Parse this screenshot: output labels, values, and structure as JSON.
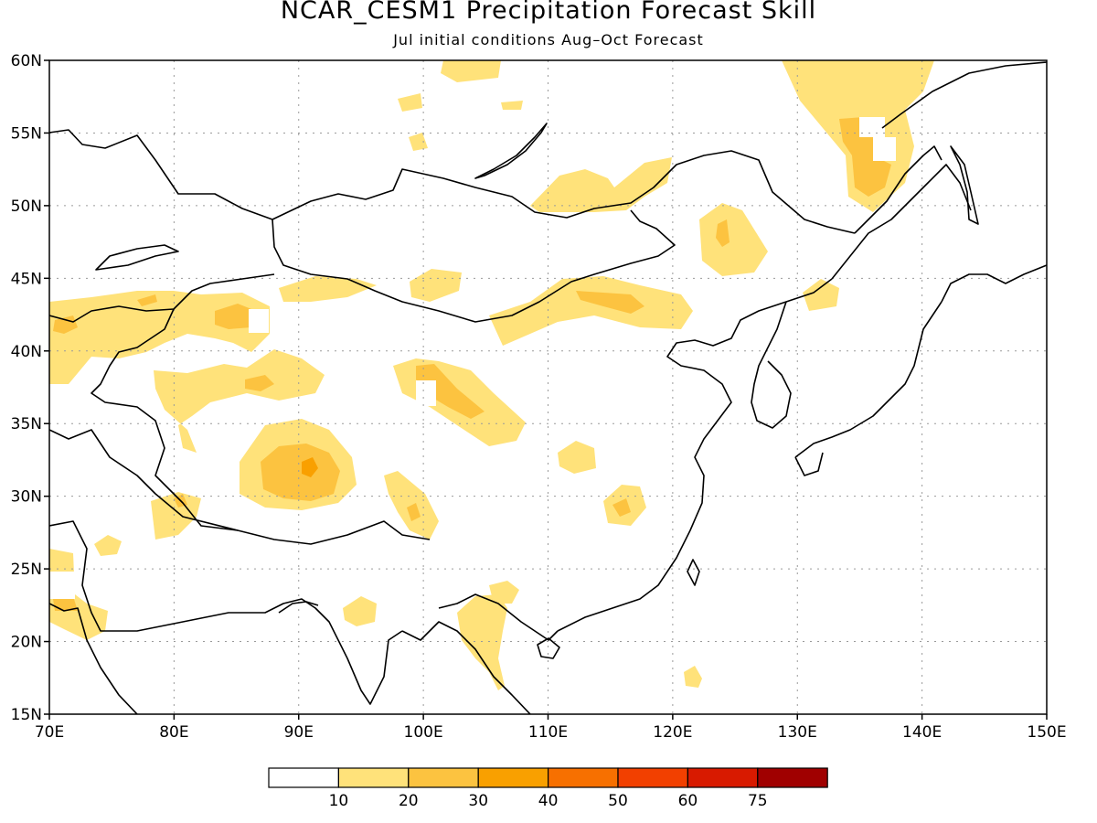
{
  "title": "NCAR_CESM1 Precipitation Forecast Skill",
  "subtitle": "Jul initial conditions  Aug–Oct Forecast",
  "map": {
    "lon_range": [
      70,
      150
    ],
    "lat_range": [
      15,
      60
    ],
    "lon_ticks": [
      "70E",
      "80E",
      "90E",
      "100E",
      "110E",
      "120E",
      "130E",
      "140E",
      "150E"
    ],
    "lat_ticks": [
      "60N",
      "55N",
      "50N",
      "45N",
      "40N",
      "35N",
      "30N",
      "25N",
      "20N",
      "15N"
    ],
    "grid": true,
    "colors": {
      "land_outline": "#000000",
      "grid": "#9a9a9a"
    }
  },
  "colorbar": {
    "labels": [
      "10",
      "20",
      "30",
      "40",
      "50",
      "60",
      "75"
    ],
    "colors": [
      "#ffffff",
      "#ffe27a",
      "#fcc340",
      "#f9a000",
      "#f77000",
      "#f24000",
      "#d81a00",
      "#a00000"
    ]
  }
}
